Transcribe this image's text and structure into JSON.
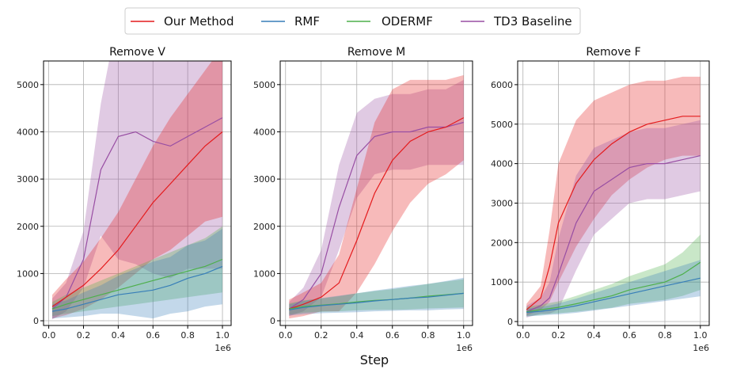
{
  "xlabel": "Step",
  "legend": {
    "placement": "top-center",
    "entries": [
      {
        "name": "Our Method",
        "color": "#e41a1c"
      },
      {
        "name": "RMF",
        "color": "#377eb8"
      },
      {
        "name": "ODERMF",
        "color": "#4daf4a"
      },
      {
        "name": "TD3 Baseline",
        "color": "#984ea3"
      }
    ]
  },
  "chart_data": [
    {
      "type": "line",
      "title": "Remove V",
      "xlabel": "",
      "ylabel": "",
      "xlim": [
        -0.03,
        1.05
      ],
      "ylim": [
        -100,
        5500
      ],
      "x_offset_label": "1e6",
      "xticks": [
        0.0,
        0.2,
        0.4,
        0.6,
        0.8,
        1.0
      ],
      "xtick_labels": [
        "0.0",
        "0.2",
        "0.4",
        "0.6",
        "0.8",
        "1.0"
      ],
      "yticks": [
        0,
        1000,
        2000,
        3000,
        4000,
        5000
      ],
      "ytick_labels": [
        "0",
        "1000",
        "2000",
        "3000",
        "4000",
        "5000"
      ],
      "grid": true,
      "x": [
        0.02,
        0.1,
        0.2,
        0.3,
        0.4,
        0.5,
        0.6,
        0.7,
        0.8,
        0.9,
        1.0
      ],
      "series": [
        {
          "name": "TD3 Baseline",
          "color": "#984ea3",
          "values": [
            250,
            500,
            1300,
            3200,
            3900,
            4000,
            3800,
            3700,
            3900,
            4100,
            4300
          ],
          "band": [
            220,
            300,
            600,
            1400,
            2600,
            2800,
            2800,
            2800,
            2800,
            3000,
            3200
          ]
        },
        {
          "name": "Our Method",
          "color": "#e41a1c",
          "values": [
            300,
            500,
            750,
            1100,
            1500,
            2000,
            2500,
            2900,
            3300,
            3700,
            4000
          ],
          "band": [
            250,
            380,
            500,
            650,
            800,
            1000,
            1200,
            1400,
            1500,
            1600,
            1800
          ]
        },
        {
          "name": "ODERMF",
          "color": "#4daf4a",
          "values": [
            250,
            350,
            450,
            550,
            650,
            750,
            850,
            950,
            1050,
            1150,
            1300
          ],
          "band": [
            150,
            200,
            250,
            300,
            350,
            400,
            450,
            500,
            550,
            600,
            700
          ]
        },
        {
          "name": "RMF",
          "color": "#377eb8",
          "values": [
            200,
            250,
            350,
            450,
            550,
            600,
            650,
            750,
            900,
            1000,
            1150
          ],
          "band": [
            150,
            180,
            250,
            300,
            400,
            500,
            600,
            600,
            700,
            700,
            800
          ]
        }
      ]
    },
    {
      "type": "line",
      "title": "Remove M",
      "xlabel": "",
      "ylabel": "",
      "xlim": [
        -0.03,
        1.05
      ],
      "ylim": [
        -100,
        5500
      ],
      "x_offset_label": "1e6",
      "xticks": [
        0.0,
        0.2,
        0.4,
        0.6,
        0.8,
        1.0
      ],
      "xtick_labels": [
        "0.0",
        "0.2",
        "0.4",
        "0.6",
        "0.8",
        "1.0"
      ],
      "yticks": [
        0,
        1000,
        2000,
        3000,
        4000,
        5000
      ],
      "ytick_labels": [
        "0",
        "1000",
        "2000",
        "3000",
        "4000",
        "5000"
      ],
      "grid": true,
      "x": [
        0.02,
        0.1,
        0.2,
        0.3,
        0.4,
        0.5,
        0.6,
        0.7,
        0.8,
        0.9,
        1.0
      ],
      "series": [
        {
          "name": "TD3 Baseline",
          "color": "#984ea3",
          "values": [
            250,
            450,
            1000,
            2400,
            3500,
            3900,
            4000,
            4000,
            4100,
            4100,
            4200
          ],
          "band": [
            150,
            250,
            500,
            900,
            900,
            800,
            800,
            800,
            800,
            800,
            900
          ]
        },
        {
          "name": "Our Method",
          "color": "#e41a1c",
          "values": [
            250,
            350,
            500,
            800,
            1700,
            2700,
            3400,
            3800,
            4000,
            4100,
            4300
          ],
          "band": [
            200,
            250,
            300,
            600,
            1100,
            1500,
            1500,
            1300,
            1100,
            1000,
            900
          ]
        },
        {
          "name": "ODERMF",
          "color": "#4daf4a",
          "values": [
            250,
            300,
            330,
            360,
            400,
            430,
            450,
            480,
            520,
            550,
            580
          ],
          "band": [
            120,
            130,
            140,
            160,
            180,
            200,
            220,
            240,
            260,
            280,
            300
          ]
        },
        {
          "name": "RMF",
          "color": "#377eb8",
          "values": [
            230,
            280,
            320,
            350,
            380,
            420,
            450,
            480,
            500,
            540,
            580
          ],
          "band": [
            120,
            140,
            160,
            180,
            200,
            220,
            240,
            260,
            280,
            300,
            330
          ]
        }
      ]
    },
    {
      "type": "line",
      "title": "Remove F",
      "xlabel": "",
      "ylabel": "",
      "xlim": [
        -0.03,
        1.05
      ],
      "ylim": [
        -100,
        6600
      ],
      "x_offset_label": "1e6",
      "xticks": [
        0.0,
        0.2,
        0.4,
        0.6,
        0.8,
        1.0
      ],
      "xtick_labels": [
        "0.0",
        "0.2",
        "0.4",
        "0.6",
        "0.8",
        "1.0"
      ],
      "yticks": [
        0,
        1000,
        2000,
        3000,
        4000,
        5000,
        6000
      ],
      "ytick_labels": [
        "0",
        "1000",
        "2000",
        "3000",
        "4000",
        "5000",
        "6000"
      ],
      "grid": true,
      "x": [
        0.02,
        0.1,
        0.15,
        0.2,
        0.3,
        0.4,
        0.5,
        0.6,
        0.7,
        0.8,
        0.9,
        1.0
      ],
      "series": [
        {
          "name": "Our Method",
          "color": "#e41a1c",
          "values": [
            300,
            600,
            1400,
            2500,
            3500,
            4100,
            4500,
            4800,
            5000,
            5100,
            5200,
            5200
          ],
          "band": [
            150,
            300,
            900,
            1500,
            1600,
            1500,
            1300,
            1200,
            1100,
            1000,
            1000,
            1000
          ]
        },
        {
          "name": "TD3 Baseline",
          "color": "#984ea3",
          "values": [
            250,
            400,
            600,
            1200,
            2500,
            3300,
            3600,
            3900,
            4000,
            4000,
            4100,
            4200
          ],
          "band": [
            150,
            200,
            400,
            900,
            1200,
            1100,
            1000,
            900,
            900,
            900,
            900,
            900
          ]
        },
        {
          "name": "ODERMF",
          "color": "#4daf4a",
          "values": [
            250,
            300,
            330,
            360,
            450,
            550,
            650,
            800,
            900,
            1000,
            1200,
            1500
          ],
          "band": [
            120,
            130,
            140,
            150,
            200,
            250,
            300,
            350,
            400,
            450,
            550,
            700
          ]
        },
        {
          "name": "RMF",
          "color": "#377eb8",
          "values": [
            230,
            260,
            290,
            320,
            400,
            500,
            600,
            700,
            800,
            900,
            1000,
            1100
          ],
          "band": [
            100,
            110,
            120,
            140,
            180,
            220,
            260,
            300,
            340,
            380,
            420,
            460
          ]
        }
      ]
    }
  ]
}
